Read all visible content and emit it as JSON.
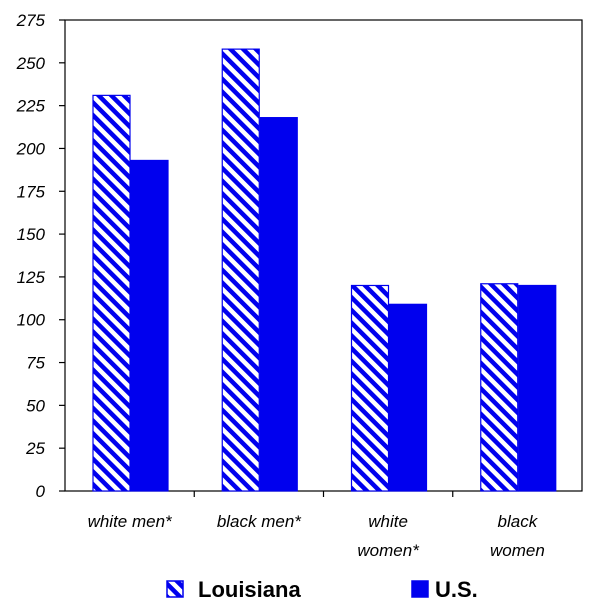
{
  "chart_data": {
    "type": "bar",
    "categories": [
      [
        "white men*"
      ],
      [
        "black men*"
      ],
      [
        "white",
        "women*"
      ],
      [
        "black",
        "women"
      ]
    ],
    "series": [
      {
        "name": "Louisiana",
        "values": [
          231,
          258,
          120,
          121
        ],
        "pattern": "diagonal-hatch"
      },
      {
        "name": "U.S.",
        "values": [
          193,
          218,
          109,
          120
        ],
        "pattern": "solid"
      }
    ],
    "ylim": [
      0,
      275
    ],
    "yticks": [
      "0",
      "25",
      "50",
      "75",
      "100",
      "125",
      "150",
      "175",
      "200",
      "225",
      "250",
      "275"
    ],
    "grid": false,
    "legend_position": "bottom",
    "colors": {
      "bar": "#0000ee",
      "hatch_bg": "#ffffff",
      "axis": "#000000"
    }
  }
}
